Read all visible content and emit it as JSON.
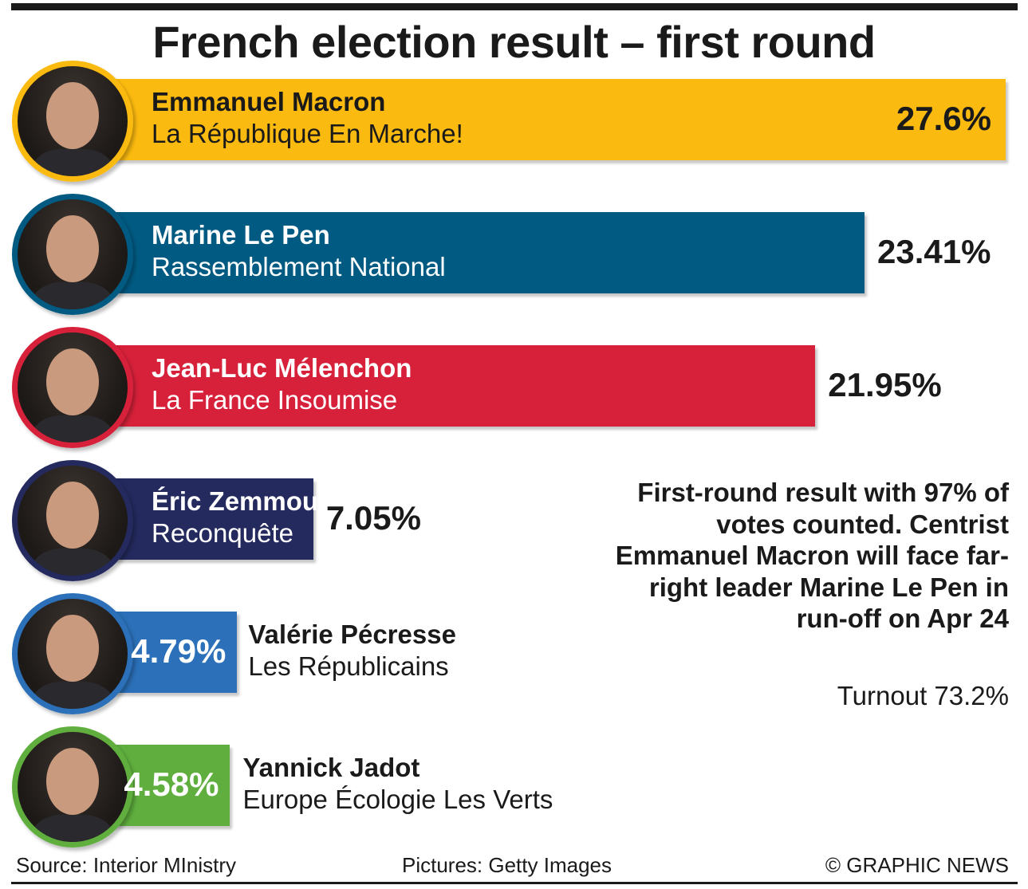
{
  "title": "French election result – first round",
  "note": "First-round result with 97% of votes counted. Centrist Emmanuel Macron will face far-right leader Marine Le Pen in run-off on Apr 24",
  "turnout": "Turnout 73.2%",
  "footer": {
    "source": "Source: Interior MInistry",
    "pictures": "Pictures: Getty Images",
    "credit": "© GRAPHIC NEWS"
  },
  "chart_data": {
    "type": "bar",
    "orientation": "horizontal",
    "categories": [
      "Emmanuel Macron",
      "Marine Le Pen",
      "Jean-Luc Mélenchon",
      "Éric Zemmour",
      "Valérie Pécresse",
      "Yannick Jadot"
    ],
    "values": [
      27.6,
      23.41,
      21.95,
      7.05,
      4.79,
      4.58
    ],
    "value_labels": [
      "27.6%",
      "23.41%",
      "21.95%",
      "7.05%",
      "4.79%",
      "4.58%"
    ],
    "parties": [
      "La République En Marche!",
      "Rassemblement National",
      "La France Insoumise",
      "Reconquête",
      "Les Républicains",
      "Europe Écologie Les Verts"
    ],
    "colors": [
      "#FBBA0F",
      "#005A82",
      "#D7213A",
      "#242A5E",
      "#2B70B8",
      "#5FAE3E"
    ],
    "xlim": [
      0,
      27.6
    ]
  }
}
